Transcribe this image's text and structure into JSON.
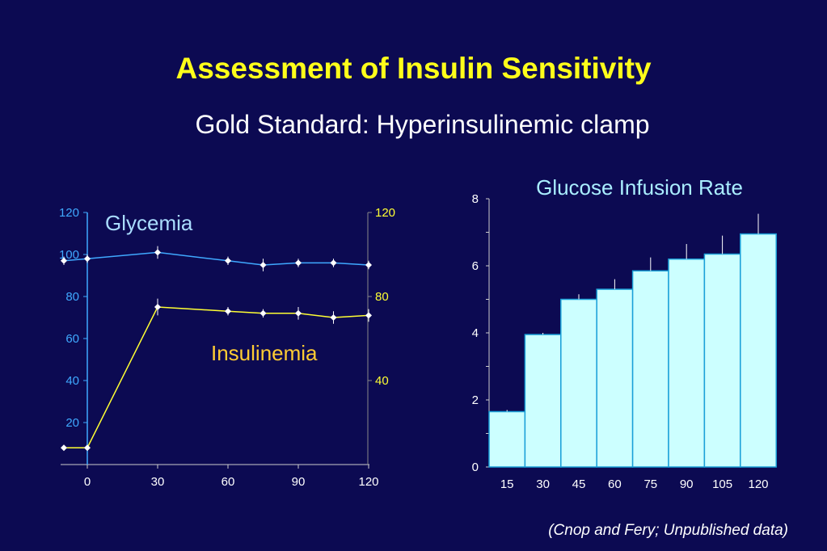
{
  "slide": {
    "title": "Assessment of Insulin Sensitivity",
    "subtitle": "Gold Standard: Hyperinsulinemic clamp",
    "source": "(Cnop and Fery; Unpublished data)"
  },
  "colors": {
    "background": "#0c0a52",
    "title": "#ffff1a",
    "glycemia": "#3fa9ff",
    "insulinemia": "#ffff33",
    "bar_fill": "#ccffff",
    "bar_stroke": "#1aa0d8",
    "axis_light": "#cccccc"
  },
  "chart_data": [
    {
      "type": "line",
      "x_ticks": [
        "0",
        "30",
        "60",
        "90",
        "120"
      ],
      "x_range": [
        -10,
        120
      ],
      "y_left_ticks": [
        "20",
        "40",
        "60",
        "80",
        "100",
        "120"
      ],
      "y_left_range": [
        0,
        120
      ],
      "y_right_ticks": [
        "40",
        "80",
        "120"
      ],
      "y_right_range": [
        0,
        120
      ],
      "series": [
        {
          "name": "Glycemia",
          "axis": "left",
          "color": "#3fa9ff",
          "x": [
            -10,
            0,
            30,
            60,
            75,
            90,
            105,
            120
          ],
          "y": [
            97,
            98,
            101,
            97,
            95,
            96,
            96,
            95
          ],
          "err": [
            2,
            2,
            3,
            2,
            3,
            2,
            2,
            2
          ]
        },
        {
          "name": "Insulinemia",
          "axis": "right",
          "color": "#ffff33",
          "x": [
            -10,
            0,
            30,
            60,
            75,
            90,
            105,
            120
          ],
          "y": [
            8,
            8,
            75,
            73,
            72,
            72,
            70,
            71
          ],
          "err": [
            0,
            0,
            4,
            2,
            2,
            3,
            3,
            3
          ]
        }
      ]
    },
    {
      "type": "bar",
      "title": "Glucose Infusion Rate",
      "categories": [
        "15",
        "30",
        "45",
        "60",
        "75",
        "90",
        "105",
        "120"
      ],
      "values": [
        1.65,
        3.95,
        5.0,
        5.3,
        5.85,
        6.2,
        6.35,
        6.95
      ],
      "err": [
        0.05,
        0.05,
        0.15,
        0.3,
        0.4,
        0.45,
        0.55,
        0.6
      ],
      "y_ticks": [
        "0",
        "2",
        "4",
        "6",
        "8"
      ],
      "ylim": [
        0,
        8
      ]
    }
  ]
}
